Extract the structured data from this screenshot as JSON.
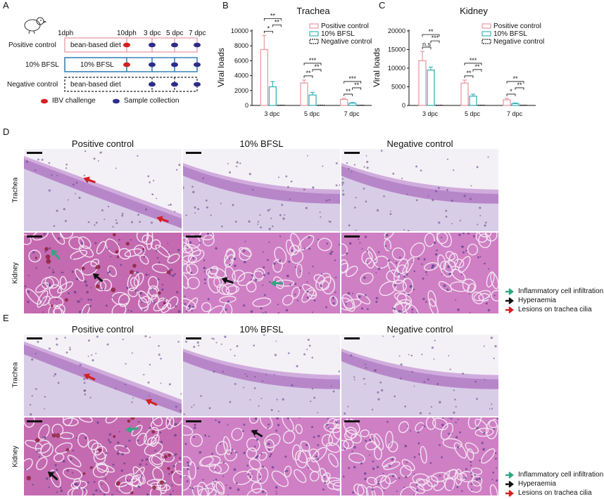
{
  "panel_labels": {
    "a": "A",
    "b": "B",
    "c": "C",
    "d": "D",
    "e": "E"
  },
  "timeline": {
    "points": [
      "1dph",
      "10dph",
      "3 dpc",
      "5 dpc",
      "7 dpc"
    ],
    "groups": [
      {
        "name": "Positive control",
        "diet": "bean-based diet",
        "color": "#e89aa4",
        "style": "solid"
      },
      {
        "name": "10% BFSL",
        "diet": "10% BFSL",
        "color": "#3b83b8",
        "style": "solid"
      },
      {
        "name": "Negative control",
        "diet": "bean-based diet",
        "color": "#222222",
        "style": "dashed"
      }
    ],
    "legend_challenge": "IBV challenge",
    "legend_sample": "Sample collection",
    "challenge_color": "#d42020",
    "sample_color": "#2c2c8c"
  },
  "chart_data": [
    {
      "type": "bar",
      "title": "Trachea",
      "ylabel": "Viral loads",
      "categories": [
        "3 dpc",
        "5 dpc",
        "7 dpc"
      ],
      "yticks": [
        "0",
        "2000",
        "4000",
        "6000",
        "8000",
        "10000"
      ],
      "ylim": [
        0,
        10000
      ],
      "series": [
        {
          "name": "Positive control",
          "values": [
            7500,
            3000,
            800
          ],
          "errors": [
            1900,
            400,
            150
          ],
          "color": "#e89aa4"
        },
        {
          "name": "10% BFSL",
          "values": [
            2500,
            1400,
            300
          ],
          "errors": [
            700,
            350,
            100
          ],
          "color": "#3bb3b8"
        },
        {
          "name": "Negative control",
          "values": [
            0,
            0,
            0
          ],
          "errors": [
            0,
            0,
            0
          ],
          "color": "#222222"
        }
      ],
      "significance": {
        "3 dpc": [
          "*",
          "**",
          "**"
        ],
        "5 dpc": [
          "**",
          "**",
          "***"
        ],
        "7 dpc": [
          "**",
          "**",
          "***"
        ]
      }
    },
    {
      "type": "bar",
      "title": "Kidney",
      "ylabel": "Viral loads",
      "categories": [
        "3 dpc",
        "5 dpc",
        "7 dpc"
      ],
      "yticks": [
        "0",
        "5000",
        "10000",
        "15000",
        "20000"
      ],
      "ylim": [
        0,
        20000
      ],
      "series": [
        {
          "name": "Positive control",
          "values": [
            12000,
            6000,
            1500
          ],
          "errors": [
            2500,
            800,
            400
          ],
          "color": "#e89aa4"
        },
        {
          "name": "10% BFSL",
          "values": [
            9500,
            2500,
            500
          ],
          "errors": [
            800,
            500,
            150
          ],
          "color": "#3bb3b8"
        },
        {
          "name": "Negative control",
          "values": [
            0,
            0,
            0
          ],
          "errors": [
            0,
            0,
            0
          ],
          "color": "#222222"
        }
      ],
      "significance": {
        "3 dpc": [
          "n.s",
          "***",
          "**"
        ],
        "5 dpc": [
          "**",
          "**",
          "***"
        ],
        "7 dpc": [
          "*",
          "**",
          "**"
        ]
      }
    }
  ],
  "micro": {
    "col_titles": [
      "Positive control",
      "10% BFSL",
      "Negative control"
    ],
    "row_labels": [
      "Trachea",
      "Kidney"
    ],
    "legend": [
      {
        "label": "Inflammatory cell infiltration",
        "color": "#2ea882"
      },
      {
        "label": "Hyperaemia",
        "color": "#111111"
      },
      {
        "label": "Lesions on trachea cilia",
        "color": "#d42020"
      }
    ]
  }
}
